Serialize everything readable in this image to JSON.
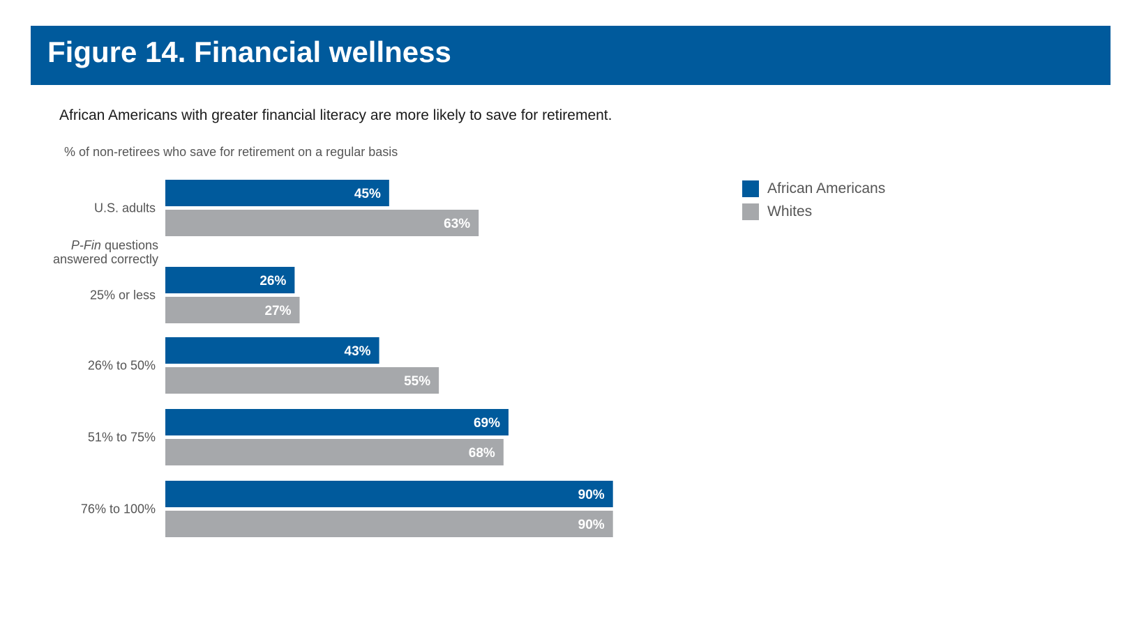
{
  "figure_title": "Figure 14. Financial wellness",
  "colors": {
    "banner": "#005a9c",
    "african_americans": "#005a9c",
    "whites": "#a6a8ab",
    "label_text": "#555555"
  },
  "chart_data": {
    "type": "bar",
    "orientation": "horizontal",
    "title": "African Americans with greater financial literacy are more likely to save for retirement.",
    "subtitle": "% of non-retirees who save for retirement on a regular basis",
    "group_header": {
      "italic": "P-Fin",
      "rest": " questions",
      "line2": "answered correctly"
    },
    "categories": [
      "U.S. adults",
      "25% or less",
      "26% to 50%",
      "51% to 75%",
      "76% to 100%"
    ],
    "series": [
      {
        "name": "African Americans",
        "values": [
          45,
          26,
          43,
          69,
          90
        ],
        "labels": [
          "45%",
          "26%",
          "43%",
          "69%",
          "90%"
        ]
      },
      {
        "name": "Whites",
        "values": [
          63,
          27,
          55,
          68,
          90
        ],
        "labels": [
          "63%",
          "27%",
          "55%",
          "68%",
          "90%"
        ]
      }
    ],
    "xlim": [
      0,
      100
    ],
    "grid": false,
    "legend_position": "top-right"
  }
}
